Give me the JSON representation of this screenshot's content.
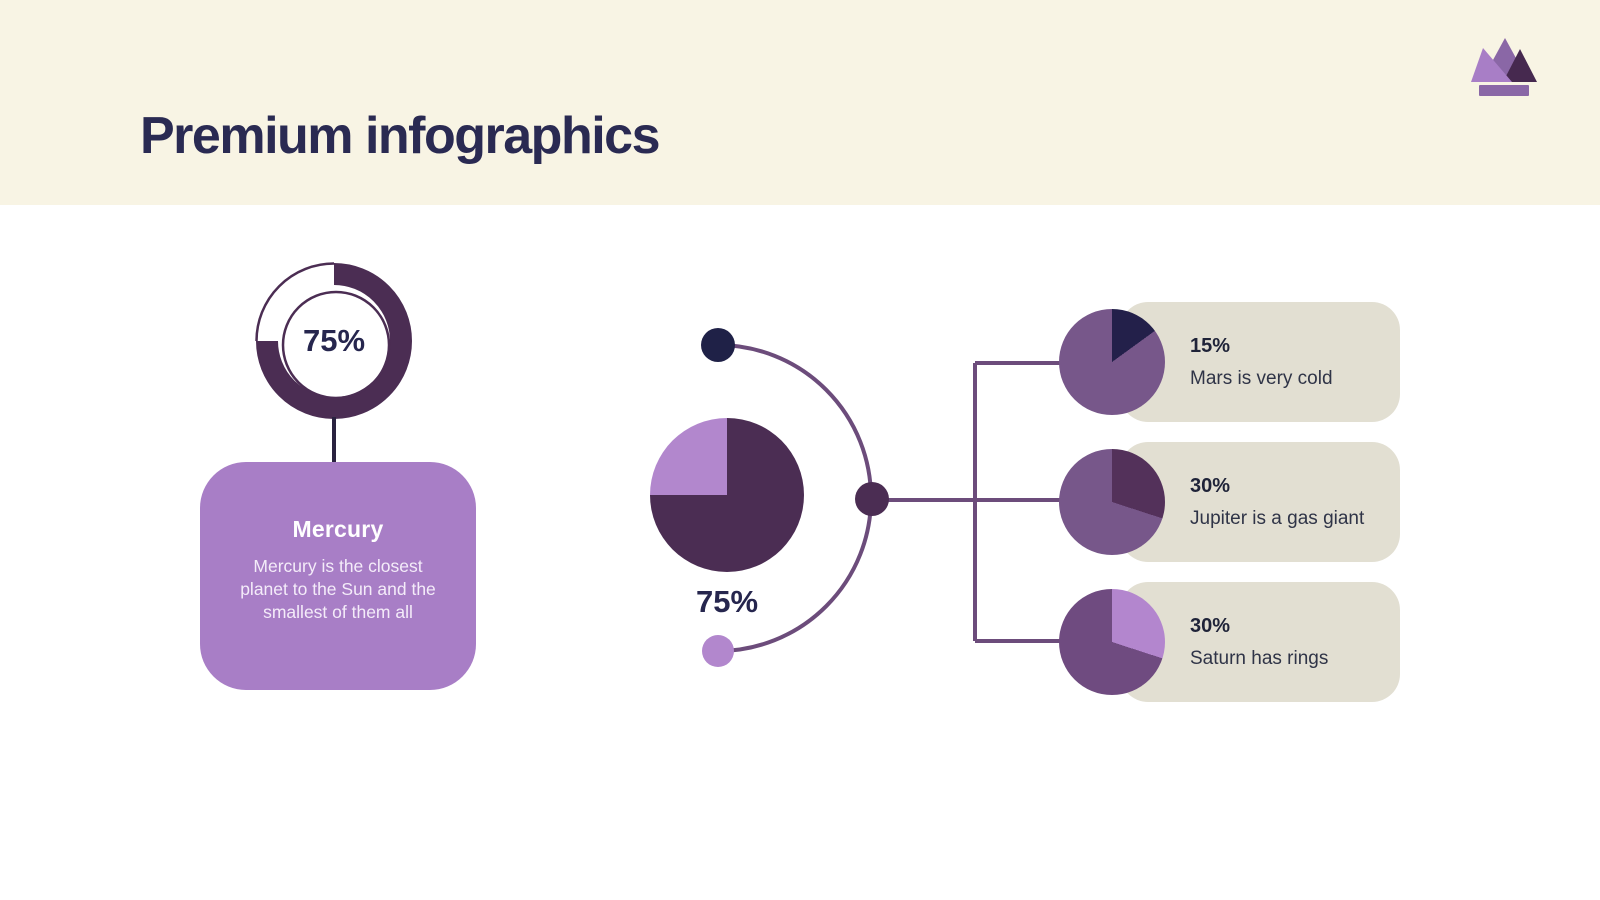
{
  "header": {
    "title": "Premium infographics",
    "logo": "crown-logo"
  },
  "mercury": {
    "donut_value": "75%",
    "donut_percent": 75,
    "card_title": "Mercury",
    "card_body": "Mercury is the closest planet to the Sun and the smallest of them all"
  },
  "overview": {
    "pie_value": "75%",
    "pie_percent": 75
  },
  "planets": [
    {
      "percent_label": "15%",
      "percent": 15,
      "description": "Mars is very cold",
      "slice_color": "#23204A",
      "base_color": "#77578A"
    },
    {
      "percent_label": "30%",
      "percent": 30,
      "description": "Jupiter is a gas giant",
      "slice_color": "#53315A",
      "base_color": "#77578A"
    },
    {
      "percent_label": "30%",
      "percent": 30,
      "description": "Saturn has rings",
      "slice_color": "#B386CE",
      "base_color": "#6F4B80"
    }
  ],
  "colors": {
    "header_bg": "#F8F4E4",
    "body_bg": "#FFFFFF",
    "title_text": "#2A2A52",
    "value_text": "#26264E",
    "dark_purple": "#4B2D53",
    "light_purple": "#B287CD",
    "card_purple": "#A87EC6",
    "medium_purple": "#77578A",
    "connector_line": "#6C4C7B",
    "dot_navy": "#1F2147",
    "box_bg": "#E2DFD2",
    "box_pct_text": "#1F2338",
    "box_desc_text": "#2F3447"
  },
  "chart_data": [
    {
      "type": "pie",
      "title": "Mercury donut gauge",
      "labels": [
        "filled",
        "empty"
      ],
      "values": [
        75,
        25
      ],
      "value_label": "75%"
    },
    {
      "type": "pie",
      "title": "Overview pie",
      "labels": [
        "dark",
        "light"
      ],
      "values": [
        75,
        25
      ],
      "value_label": "75%"
    },
    {
      "type": "pie",
      "title": "Mars",
      "labels": [
        "slice",
        "rest"
      ],
      "values": [
        15,
        85
      ],
      "value_label": "15%"
    },
    {
      "type": "pie",
      "title": "Jupiter",
      "labels": [
        "slice",
        "rest"
      ],
      "values": [
        30,
        70
      ],
      "value_label": "30%"
    },
    {
      "type": "pie",
      "title": "Saturn",
      "labels": [
        "slice",
        "rest"
      ],
      "values": [
        30,
        70
      ],
      "value_label": "30%"
    }
  ]
}
